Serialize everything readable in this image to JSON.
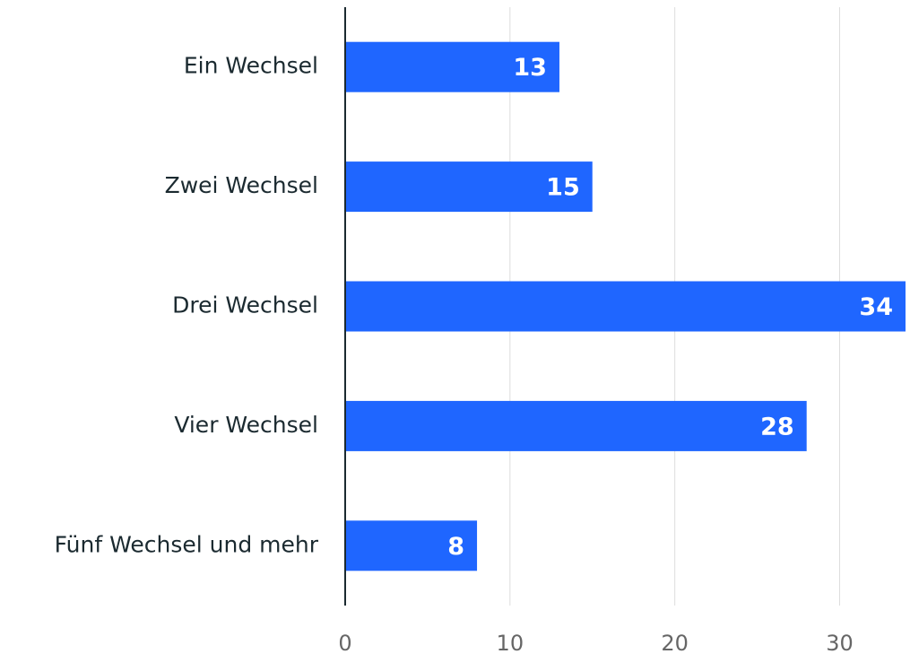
{
  "chart_data": {
    "type": "bar",
    "orientation": "horizontal",
    "categories": [
      "Ein Wechsel",
      "Zwei Wechsel",
      "Drei Wechsel",
      "Vier Wechsel",
      "Fünf Wechsel und mehr"
    ],
    "values": [
      13,
      15,
      34,
      28,
      8
    ],
    "color": "#1f66ff",
    "xlim": [
      0,
      34
    ],
    "xticks": [
      0,
      10,
      20,
      30
    ],
    "grid": true
  }
}
